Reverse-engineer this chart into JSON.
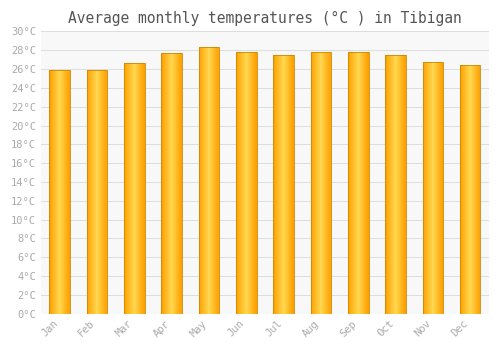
{
  "title": "Average monthly temperatures (°C ) in Tibigan",
  "months": [
    "Jan",
    "Feb",
    "Mar",
    "Apr",
    "May",
    "Jun",
    "Jul",
    "Aug",
    "Sep",
    "Oct",
    "Nov",
    "Dec"
  ],
  "temperatures": [
    25.9,
    25.9,
    26.6,
    27.7,
    28.4,
    27.8,
    27.5,
    27.8,
    27.8,
    27.5,
    26.8,
    26.4
  ],
  "bar_color_center": "#FFD060",
  "bar_color_edge": "#FFA000",
  "ylim": [
    0,
    30
  ],
  "ytick_step": 2,
  "background_color": "#ffffff",
  "plot_bg_color": "#f8f8f8",
  "grid_color": "#dddddd",
  "title_fontsize": 10.5,
  "tick_fontsize": 7.5,
  "tick_color": "#aaaaaa",
  "bar_width": 0.55
}
